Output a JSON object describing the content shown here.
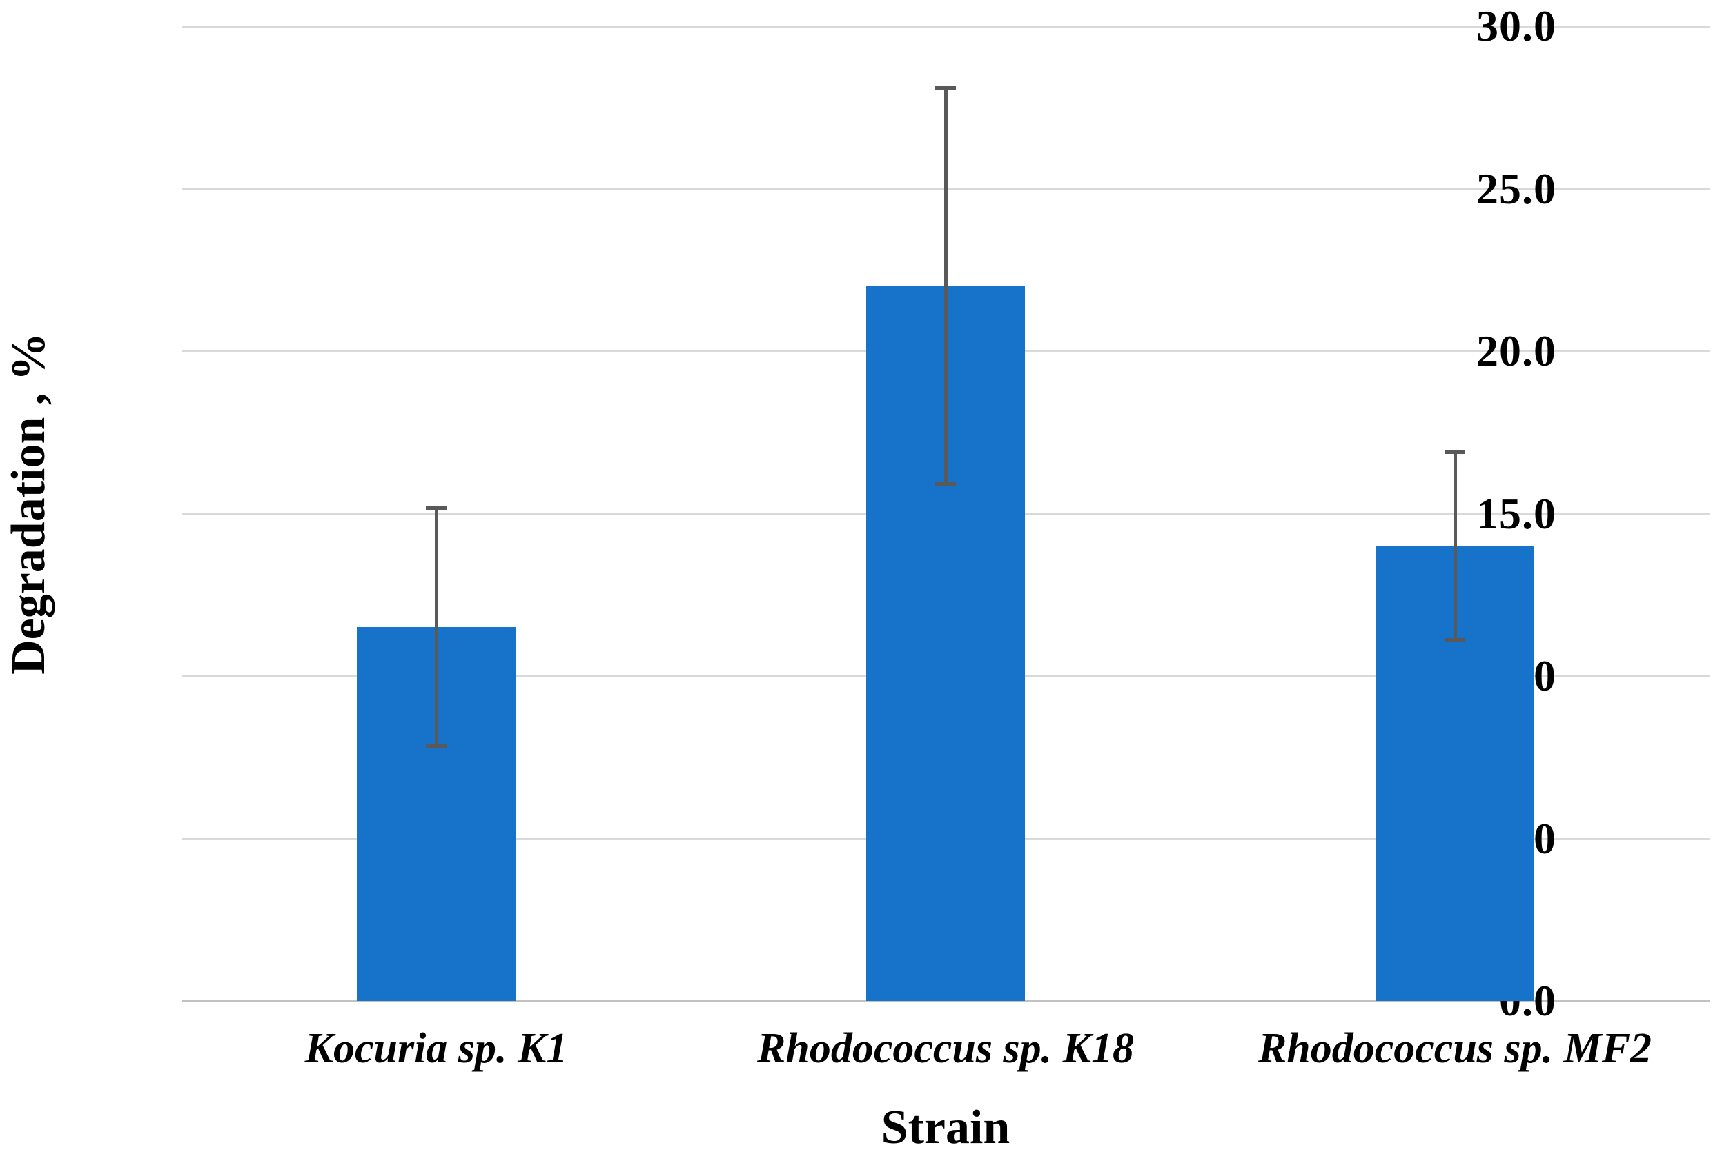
{
  "chart_data": {
    "type": "bar",
    "title": "",
    "xlabel": "Strain",
    "ylabel": "Degradation , %",
    "categories": [
      "Kocuria sp. K1",
      "Rhodococcus sp. K18",
      "Rhodococcus sp. MF2"
    ],
    "values": [
      11.5,
      22.0,
      14.0
    ],
    "error_bars": [
      3.65,
      6.1,
      2.9
    ],
    "error_range": [
      [
        7.85,
        15.15
      ],
      [
        15.9,
        28.1
      ],
      [
        11.1,
        16.9
      ]
    ],
    "ylim": [
      0,
      30
    ],
    "ytick_step": 5,
    "ytick_labels": [
      "0.0",
      "5.0",
      "10.0",
      "15.0",
      "20.0",
      "25.0",
      "30.0"
    ],
    "grid": true,
    "legend": "none",
    "bar_color": "#1772c9",
    "error_color": "#595959",
    "gridline_color": "#d9d9d9",
    "axis_line_color": "#c2c2c2",
    "text_color": "#000000"
  }
}
